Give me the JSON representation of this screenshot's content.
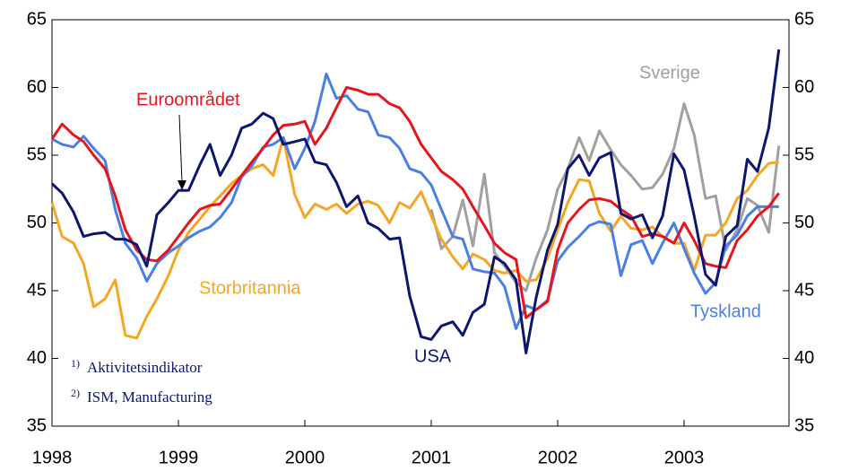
{
  "chart_data": {
    "type": "line",
    "x": [
      1998.0,
      1998.08,
      1998.17,
      1998.25,
      1998.33,
      1998.42,
      1998.5,
      1998.58,
      1998.67,
      1998.75,
      1998.83,
      1998.92,
      1999.0,
      1999.08,
      1999.17,
      1999.25,
      1999.33,
      1999.42,
      1999.5,
      1999.58,
      1999.67,
      1999.75,
      1999.83,
      1999.92,
      2000.0,
      2000.08,
      2000.17,
      2000.25,
      2000.33,
      2000.42,
      2000.5,
      2000.58,
      2000.67,
      2000.75,
      2000.83,
      2000.92,
      2001.0,
      2001.08,
      2001.17,
      2001.25,
      2001.33,
      2001.42,
      2001.5,
      2001.58,
      2001.67,
      2001.75,
      2001.83,
      2001.92,
      2002.0,
      2002.08,
      2002.17,
      2002.25,
      2002.33,
      2002.42,
      2002.5,
      2002.58,
      2002.67,
      2002.75,
      2002.83,
      2002.92,
      2003.0,
      2003.08,
      2003.17,
      2003.25,
      2003.33,
      2003.42,
      2003.5,
      2003.58,
      2003.67,
      2003.75
    ],
    "xlim": [
      1998,
      2003.83
    ],
    "xticks": [
      1998,
      1999,
      2000,
      2001,
      2002,
      2003
    ],
    "ylim": [
      35,
      65
    ],
    "yticks": [
      35,
      40,
      45,
      50,
      55,
      60,
      65
    ],
    "y2lim": [
      35,
      65
    ],
    "y2ticks": [
      35,
      40,
      45,
      50,
      55,
      60,
      65
    ],
    "series": [
      {
        "name": "Sverige",
        "color": "#a0a0a0",
        "values": [
          null,
          null,
          null,
          null,
          null,
          null,
          null,
          null,
          null,
          null,
          null,
          null,
          null,
          null,
          null,
          null,
          null,
          null,
          null,
          null,
          null,
          null,
          null,
          null,
          null,
          null,
          null,
          null,
          null,
          null,
          null,
          null,
          null,
          null,
          null,
          null,
          51.0,
          48.1,
          49.0,
          51.7,
          48.3,
          53.6,
          47.8,
          46.8,
          45.6,
          45.0,
          47.4,
          49.5,
          52.5,
          54.0,
          56.3,
          54.6,
          56.8,
          55.4,
          54.3,
          53.5,
          52.5,
          52.6,
          53.6,
          55.5,
          58.8,
          56.5,
          51.8,
          52.0,
          48.0,
          49.5,
          51.8,
          51.3,
          49.3,
          55.7
        ]
      },
      {
        "name": "Storbritannia",
        "color": "#f5a623",
        "values": [
          51.5,
          49.0,
          48.5,
          47.0,
          43.8,
          44.4,
          45.8,
          41.7,
          41.5,
          43.1,
          44.4,
          46.1,
          48.0,
          49.3,
          50.3,
          51.2,
          52.0,
          52.9,
          53.5,
          54.0,
          54.3,
          53.5,
          56.3,
          52.1,
          50.4,
          51.4,
          51.0,
          51.4,
          50.7,
          51.4,
          51.6,
          51.3,
          50.0,
          51.5,
          51.1,
          52.3,
          50.5,
          48.8,
          47.5,
          46.6,
          47.7,
          47.3,
          46.5,
          46.3,
          46.5,
          45.7,
          45.8,
          47.4,
          49.5,
          51.5,
          53.2,
          53.1,
          50.7,
          49.4,
          50.5,
          49.6,
          49.5,
          49.7,
          49.0,
          48.5,
          48.5,
          46.5,
          49.1,
          49.1,
          50.0,
          51.8,
          52.4,
          53.5,
          54.4,
          54.5
        ]
      },
      {
        "name": "Tyskland",
        "color": "#4a7fe6",
        "values": [
          56.2,
          55.8,
          55.6,
          56.4,
          55.5,
          54.6,
          51.0,
          48.5,
          47.4,
          45.7,
          47.0,
          47.8,
          48.3,
          48.9,
          49.4,
          49.7,
          50.4,
          51.5,
          53.4,
          54.2,
          55.6,
          55.8,
          56.3,
          54.0,
          55.5,
          57.5,
          61.0,
          59.2,
          59.4,
          58.4,
          58.2,
          56.5,
          56.3,
          55.5,
          54.0,
          53.7,
          52.8,
          51.0,
          49.0,
          48.8,
          46.6,
          46.4,
          46.3,
          45.3,
          42.2,
          43.9,
          43.6,
          44.3,
          47.2,
          48.2,
          49.0,
          49.8,
          50.1,
          49.9,
          46.1,
          48.4,
          48.7,
          47.0,
          48.5,
          50.0,
          48.1,
          46.3,
          44.8,
          45.6,
          48.3,
          49.1,
          50.5,
          51.2,
          51.2,
          51.2
        ]
      },
      {
        "name": "Euroområdet",
        "color": "#e8141c",
        "values": [
          56.2,
          57.3,
          56.5,
          56.0,
          55.0,
          54.0,
          52.0,
          49.5,
          48.0,
          47.3,
          47.2,
          48.0,
          49.0,
          50.0,
          51.0,
          51.3,
          51.4,
          52.5,
          53.5,
          54.5,
          55.5,
          56.5,
          57.2,
          57.3,
          57.5,
          55.8,
          57.0,
          58.5,
          60.0,
          59.8,
          59.5,
          59.5,
          58.8,
          58.5,
          57.5,
          55.8,
          54.8,
          53.8,
          53.2,
          52.5,
          51.2,
          49.8,
          48.5,
          47.8,
          47.3,
          43.0,
          43.6,
          44.2,
          48.0,
          50.0,
          51.0,
          51.7,
          51.8,
          51.6,
          51.0,
          50.5,
          49.0,
          49.2,
          49.0,
          48.5,
          50.0,
          48.7,
          47.0,
          46.8,
          46.7,
          48.7,
          49.5,
          50.5,
          51.2,
          52.2
        ]
      },
      {
        "name": "USA",
        "color": "#0c1570",
        "values": [
          52.9,
          52.2,
          50.8,
          49.0,
          49.2,
          49.3,
          48.8,
          48.8,
          48.4,
          46.8,
          50.6,
          51.5,
          52.4,
          52.4,
          54.3,
          55.8,
          53.5,
          55.0,
          57.0,
          57.3,
          58.1,
          57.7,
          55.8,
          56.0,
          56.2,
          54.5,
          54.3,
          53.0,
          51.2,
          52.0,
          50.0,
          49.6,
          48.8,
          48.9,
          44.6,
          41.6,
          41.4,
          42.4,
          42.7,
          41.7,
          43.4,
          44.0,
          47.5,
          47.0,
          45.8,
          40.4,
          44.5,
          48.0,
          49.9,
          54.0,
          55.0,
          53.5,
          54.8,
          55.2,
          50.7,
          50.3,
          50.6,
          48.9,
          50.5,
          55.1,
          53.9,
          50.5,
          46.2,
          45.4,
          49.0,
          49.8,
          54.7,
          53.8,
          57.0,
          62.8
        ]
      }
    ],
    "footnotes": [
      {
        "marker": "1)",
        "text": "Aktivitetsindikator"
      },
      {
        "marker": "2)",
        "text": "ISM, Manufacturing"
      }
    ]
  }
}
